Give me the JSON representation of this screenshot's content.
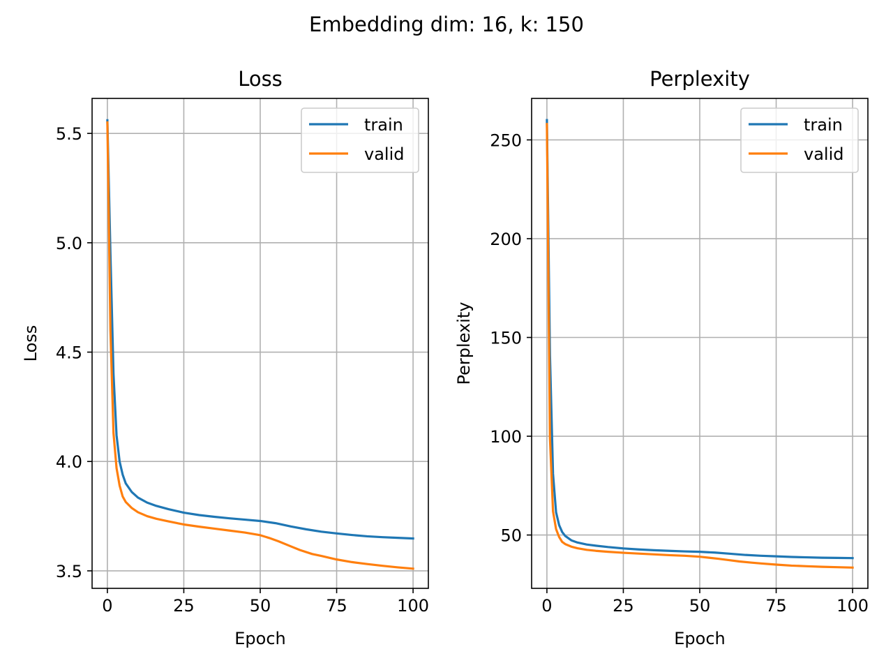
{
  "suptitle": "Embedding dim: 16, k: 150",
  "chart_data": [
    {
      "type": "line",
      "title": "Loss",
      "xlabel": "Epoch",
      "ylabel": "Loss",
      "xlim": [
        -5,
        105
      ],
      "ylim": [
        3.42,
        5.66
      ],
      "xticks": [
        0,
        25,
        50,
        75,
        100
      ],
      "xtick_labels": [
        "0",
        "25",
        "50",
        "75",
        "100"
      ],
      "yticks": [
        3.5,
        4.0,
        4.5,
        5.0,
        5.5
      ],
      "ytick_labels": [
        "3.5",
        "4.0",
        "4.5",
        "5.0",
        "5.5"
      ],
      "grid": true,
      "legend_position": "top-right",
      "series": [
        {
          "name": "train",
          "color": "#1f77b4",
          "x": [
            0,
            1,
            2,
            3,
            4,
            5,
            6,
            8,
            10,
            13,
            16,
            20,
            25,
            30,
            35,
            40,
            45,
            50,
            55,
            60,
            65,
            70,
            75,
            80,
            85,
            90,
            95,
            100
          ],
          "y": [
            5.56,
            4.95,
            4.4,
            4.12,
            4.0,
            3.94,
            3.9,
            3.86,
            3.835,
            3.812,
            3.797,
            3.782,
            3.766,
            3.755,
            3.747,
            3.74,
            3.734,
            3.728,
            3.718,
            3.703,
            3.69,
            3.679,
            3.671,
            3.664,
            3.658,
            3.654,
            3.651,
            3.648
          ]
        },
        {
          "name": "valid",
          "color": "#ff7f0e",
          "x": [
            0,
            1,
            2,
            3,
            4,
            5,
            6,
            8,
            10,
            13,
            16,
            20,
            25,
            30,
            35,
            40,
            45,
            50,
            53,
            56,
            60,
            63,
            67,
            70,
            75,
            80,
            85,
            90,
            95,
            100
          ],
          "y": [
            5.55,
            4.6,
            4.13,
            3.97,
            3.89,
            3.84,
            3.815,
            3.787,
            3.768,
            3.75,
            3.738,
            3.726,
            3.712,
            3.702,
            3.693,
            3.684,
            3.675,
            3.663,
            3.65,
            3.635,
            3.612,
            3.595,
            3.577,
            3.568,
            3.552,
            3.54,
            3.531,
            3.523,
            3.516,
            3.51
          ]
        }
      ]
    },
    {
      "type": "line",
      "title": "Perplexity",
      "xlabel": "Epoch",
      "ylabel": "Perplexity",
      "xlim": [
        -5,
        105
      ],
      "ylim": [
        23,
        271
      ],
      "xticks": [
        0,
        25,
        50,
        75,
        100
      ],
      "xtick_labels": [
        "0",
        "25",
        "50",
        "75",
        "100"
      ],
      "yticks": [
        50,
        100,
        150,
        200,
        250
      ],
      "ytick_labels": [
        "50",
        "100",
        "150",
        "200",
        "250"
      ],
      "grid": true,
      "legend_position": "top-right",
      "series": [
        {
          "name": "train",
          "color": "#1f77b4",
          "x": [
            0,
            1,
            2,
            3,
            4,
            5,
            6,
            8,
            10,
            13,
            16,
            20,
            25,
            30,
            35,
            40,
            45,
            50,
            55,
            60,
            65,
            70,
            75,
            80,
            85,
            90,
            95,
            100
          ],
          "y": [
            260,
            141,
            81,
            61.5,
            55,
            51.5,
            49.5,
            47.3,
            46.2,
            45.2,
            44.6,
            43.9,
            43.2,
            42.7,
            42.3,
            42,
            41.7,
            41.5,
            41.1,
            40.5,
            39.9,
            39.5,
            39.2,
            38.9,
            38.7,
            38.5,
            38.4,
            38.3
          ]
        },
        {
          "name": "valid",
          "color": "#ff7f0e",
          "x": [
            0,
            1,
            2,
            3,
            4,
            5,
            6,
            8,
            10,
            13,
            16,
            20,
            25,
            30,
            35,
            40,
            45,
            50,
            53,
            56,
            60,
            63,
            67,
            70,
            75,
            80,
            85,
            90,
            95,
            100
          ],
          "y": [
            258,
            99,
            62,
            53,
            49,
            46.5,
            45.4,
            44.1,
            43.3,
            42.5,
            42,
            41.5,
            41,
            40.6,
            40.2,
            39.8,
            39.5,
            39,
            38.5,
            38,
            37.2,
            36.6,
            36,
            35.6,
            35,
            34.5,
            34.2,
            33.9,
            33.7,
            33.5
          ]
        }
      ]
    }
  ]
}
